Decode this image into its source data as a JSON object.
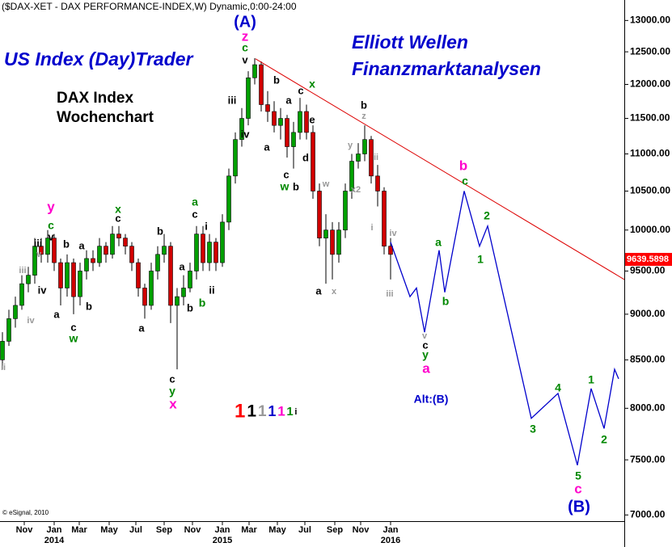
{
  "chart_data": {
    "type": "candlestick",
    "title": "($DAX-XET - DAX PERFORMANCE-INDEX,W) Dynamic,0:00-24:00",
    "brand": "US Index (Day)Trader",
    "subtitle_lines": [
      "DAX Index",
      "Wochenchart"
    ],
    "headline_lines": [
      "Elliott Wellen",
      "Finanzmarktanalysen"
    ],
    "copyright": "© eSignal, 2010",
    "log_scale": true,
    "grid": false,
    "up_color": "#00a000",
    "down_color": "#d00000",
    "xlim": [
      -16.75,
      176.25
    ],
    "ylim": [
      6960,
      13150
    ],
    "xticks": [
      {
        "value": -9.25,
        "label": "Nov"
      },
      {
        "value": 0,
        "label": "Jan"
      },
      {
        "value": 7.75,
        "label": "Mar"
      },
      {
        "value": 17,
        "label": "May"
      },
      {
        "value": 25.25,
        "label": "Jul"
      },
      {
        "value": 34,
        "label": "Sep"
      },
      {
        "value": 42.75,
        "label": "Nov"
      },
      {
        "value": 52,
        "label": "Jan"
      },
      {
        "value": 60.25,
        "label": "Mar"
      },
      {
        "value": 69,
        "label": "May"
      },
      {
        "value": 77.5,
        "label": "Jul"
      },
      {
        "value": 86.75,
        "label": "Sep"
      },
      {
        "value": 94.75,
        "label": "Nov"
      },
      {
        "value": 104,
        "label": "Jan"
      }
    ],
    "x_year_labels": [
      {
        "value": 0,
        "label": "2014"
      },
      {
        "value": 52,
        "label": "2015"
      },
      {
        "value": 104,
        "label": "2016"
      }
    ],
    "yticks": [
      {
        "value": 7000,
        "label": "7000.00"
      },
      {
        "value": 7500,
        "label": "7500.00"
      },
      {
        "value": 8000,
        "label": "8000.00"
      },
      {
        "value": 8500,
        "label": "8500.00"
      },
      {
        "value": 9000,
        "label": "9000.00"
      },
      {
        "value": 9500,
        "label": "9500.00"
      },
      {
        "value": 10000,
        "label": "10000.00"
      },
      {
        "value": 10500,
        "label": "10500.00"
      },
      {
        "value": 11000,
        "label": "11000.00"
      },
      {
        "value": 11500,
        "label": "11500.00"
      },
      {
        "value": 12000,
        "label": "12000.00"
      },
      {
        "value": 12500,
        "label": "12500.00"
      },
      {
        "value": 13000,
        "label": "13000.00"
      }
    ],
    "x": [
      -16,
      -14,
      -12,
      -10,
      -8,
      -6,
      -4,
      -2,
      0,
      2,
      4,
      6,
      8,
      10,
      12,
      14,
      16,
      18,
      20,
      22,
      24,
      26,
      28,
      30,
      32,
      34,
      36,
      38,
      40,
      42,
      44,
      46,
      48,
      50,
      52,
      54,
      56,
      58,
      60,
      62,
      64,
      66,
      68,
      70,
      72,
      74,
      76,
      78,
      80,
      82,
      84,
      86,
      88,
      90,
      92,
      94,
      96,
      98,
      100,
      102,
      104
    ],
    "open": [
      8500,
      8700,
      8950,
      9100,
      9350,
      9450,
      9800,
      9700,
      9900,
      9600,
      9300,
      9600,
      9200,
      9500,
      9650,
      9600,
      9800,
      9700,
      9950,
      9900,
      9800,
      9600,
      9300,
      9100,
      9500,
      9700,
      9800,
      9100,
      9200,
      9300,
      9500,
      9950,
      9600,
      9850,
      9600,
      10100,
      10700,
      11200,
      11500,
      12100,
      12300,
      11700,
      11600,
      11400,
      11500,
      11100,
      11300,
      11600,
      11300,
      10500,
      9900,
      10000,
      9700,
      10000,
      10500,
      10900,
      11000,
      11200,
      10700,
      10500,
      9800
    ],
    "high": [
      8800,
      9050,
      9200,
      9450,
      9550,
      9900,
      9900,
      10000,
      9950,
      9650,
      9700,
      9650,
      9600,
      9750,
      9750,
      9900,
      9850,
      10050,
      10050,
      9950,
      9850,
      9650,
      9350,
      9600,
      9800,
      9950,
      9850,
      9300,
      9450,
      9600,
      10050,
      10050,
      9950,
      9900,
      10200,
      10800,
      11300,
      11650,
      12200,
      12400,
      12350,
      11900,
      11750,
      11650,
      11550,
      11450,
      11800,
      11700,
      11400,
      10600,
      10200,
      10100,
      10100,
      10600,
      11000,
      11150,
      11400,
      11250,
      10850,
      10550,
      9900
    ],
    "low": [
      8400,
      8650,
      8850,
      9050,
      9250,
      9350,
      9600,
      9600,
      9500,
      9100,
      9200,
      9000,
      9100,
      9400,
      9500,
      9550,
      9600,
      9650,
      9800,
      9700,
      9500,
      9200,
      8950,
      9050,
      9400,
      9600,
      8900,
      8400,
      9100,
      9250,
      9400,
      9500,
      9500,
      9500,
      9550,
      10000,
      10600,
      11100,
      11400,
      12000,
      11600,
      11450,
      11300,
      11200,
      10950,
      10800,
      11200,
      11200,
      10400,
      9800,
      9350,
      9400,
      9600,
      9900,
      10400,
      10800,
      10900,
      10600,
      10300,
      9700,
      9400
    ],
    "close": [
      8700,
      8950,
      9100,
      9350,
      9450,
      9800,
      9700,
      9900,
      9600,
      9300,
      9600,
      9200,
      9500,
      9650,
      9600,
      9800,
      9700,
      9950,
      9900,
      9800,
      9600,
      9300,
      9100,
      9500,
      9700,
      9800,
      9100,
      9200,
      9300,
      9500,
      9950,
      9600,
      9850,
      9600,
      10100,
      10700,
      11200,
      11500,
      12100,
      12300,
      11700,
      11600,
      11400,
      11500,
      11100,
      11300,
      11600,
      11300,
      10500,
      9900,
      10000,
      9700,
      10000,
      10500,
      10900,
      11000,
      11200,
      10700,
      10500,
      9800,
      9700
    ],
    "last_price": 9639.5898,
    "last_price_color": "#ff0000",
    "trendline": {
      "color": "#dd0000",
      "x": [
        62.25,
        176.25
      ],
      "values": [
        12390,
        9400
      ]
    },
    "projection": {
      "color": "#0000cc",
      "x": [
        104,
        110,
        112,
        114.5,
        119,
        120.75,
        126.75,
        131.5,
        134,
        147.5,
        155.75,
        161.75,
        166,
        170,
        173.25,
        174.5
      ],
      "values": [
        9850,
        9200,
        9300,
        8800,
        9750,
        9250,
        10500,
        9800,
        10050,
        7900,
        8150,
        7450,
        8200,
        7800,
        8400,
        8300
      ]
    },
    "annotations": [
      {
        "text": "ii",
        "color": "#999999"
      },
      {
        "text": "iii",
        "color": "#999999"
      },
      {
        "text": "v",
        "color": "#999999"
      },
      {
        "text": "iv",
        "color": "#999999"
      },
      {
        "text": "y",
        "color": "#ff00cc"
      },
      {
        "text": "c",
        "color": "#008800"
      },
      {
        "text": "v",
        "color": "#000000"
      },
      {
        "text": "iii",
        "color": "#000000"
      },
      {
        "text": "iv",
        "color": "#000000"
      },
      {
        "text": "b",
        "color": "#000000"
      },
      {
        "text": "a",
        "color": "#000000"
      },
      {
        "text": "a",
        "color": "#000000"
      },
      {
        "text": "c",
        "color": "#000000"
      },
      {
        "text": "w",
        "color": "#008800"
      },
      {
        "text": "b",
        "color": "#000000"
      },
      {
        "text": "x",
        "color": "#008800"
      },
      {
        "text": "c",
        "color": "#000000"
      },
      {
        "text": "b",
        "color": "#000000"
      },
      {
        "text": "a",
        "color": "#000000"
      },
      {
        "text": "a",
        "color": "#008800"
      },
      {
        "text": "c",
        "color": "#000000"
      },
      {
        "text": "i",
        "color": "#000000"
      },
      {
        "text": "a",
        "color": "#000000"
      },
      {
        "text": "ii",
        "color": "#000000"
      },
      {
        "text": "b",
        "color": "#008800"
      },
      {
        "text": "b",
        "color": "#000000"
      },
      {
        "text": "c",
        "color": "#000000"
      },
      {
        "text": "y",
        "color": "#008800"
      },
      {
        "text": "x",
        "color": "#ff00cc"
      },
      {
        "text": "(A)",
        "color": "#0000cc"
      },
      {
        "text": "z",
        "color": "#ff00cc"
      },
      {
        "text": "c",
        "color": "#008800"
      },
      {
        "text": "v",
        "color": "#000000"
      },
      {
        "text": "iii",
        "color": "#000000"
      },
      {
        "text": "iv",
        "color": "#000000"
      },
      {
        "text": "b",
        "color": "#000000"
      },
      {
        "text": "a",
        "color": "#000000"
      },
      {
        "text": "c",
        "color": "#000000"
      },
      {
        "text": "x",
        "color": "#008800"
      },
      {
        "text": "e",
        "color": "#000000"
      },
      {
        "text": "a",
        "color": "#000000"
      },
      {
        "text": "d",
        "color": "#000000"
      },
      {
        "text": "c",
        "color": "#000000"
      },
      {
        "text": "w",
        "color": "#008800"
      },
      {
        "text": "b",
        "color": "#000000"
      },
      {
        "text": "w",
        "color": "#999999"
      },
      {
        "text": "a",
        "color": "#000000"
      },
      {
        "text": "x",
        "color": "#999999"
      },
      {
        "text": "y",
        "color": "#999999"
      },
      {
        "text": "x2",
        "color": "#999999"
      },
      {
        "text": "b",
        "color": "#000000"
      },
      {
        "text": "z",
        "color": "#999999"
      },
      {
        "text": "ii",
        "color": "#999999"
      },
      {
        "text": "i",
        "color": "#999999"
      },
      {
        "text": "iv",
        "color": "#999999"
      },
      {
        "text": "iii",
        "color": "#999999"
      },
      {
        "text": "v",
        "color": "#999999"
      },
      {
        "text": "c",
        "color": "#000000"
      },
      {
        "text": "y",
        "color": "#008800"
      },
      {
        "text": "a",
        "color": "#ff00cc"
      },
      {
        "text": "a",
        "color": "#008800"
      },
      {
        "text": "b",
        "color": "#008800"
      },
      {
        "text": "1",
        "color": "#008800"
      },
      {
        "text": "2",
        "color": "#008800"
      },
      {
        "text": "b",
        "color": "#ff00cc"
      },
      {
        "text": "c",
        "color": "#008800"
      },
      {
        "text": "3",
        "color": "#008800"
      },
      {
        "text": "4",
        "color": "#008800"
      },
      {
        "text": "5",
        "color": "#008800"
      },
      {
        "text": "c",
        "color": "#ff00cc"
      },
      {
        "text": "(B)",
        "color": "#0000cc"
      },
      {
        "text": "1",
        "color": "#008800"
      },
      {
        "text": "2",
        "color": "#008800"
      },
      {
        "text": "Alt:(B)",
        "color": "#0000cc"
      }
    ],
    "degree_legend": [
      {
        "text": "1",
        "color": "#ff0000"
      },
      {
        "text": "1",
        "color": "#000000"
      },
      {
        "text": "1",
        "color": "#999999"
      },
      {
        "text": "1",
        "color": "#0000cc"
      },
      {
        "text": "1",
        "color": "#ff00cc"
      },
      {
        "text": "1",
        "color": "#008800"
      },
      {
        "text": "i",
        "color": "#000000"
      }
    ]
  }
}
